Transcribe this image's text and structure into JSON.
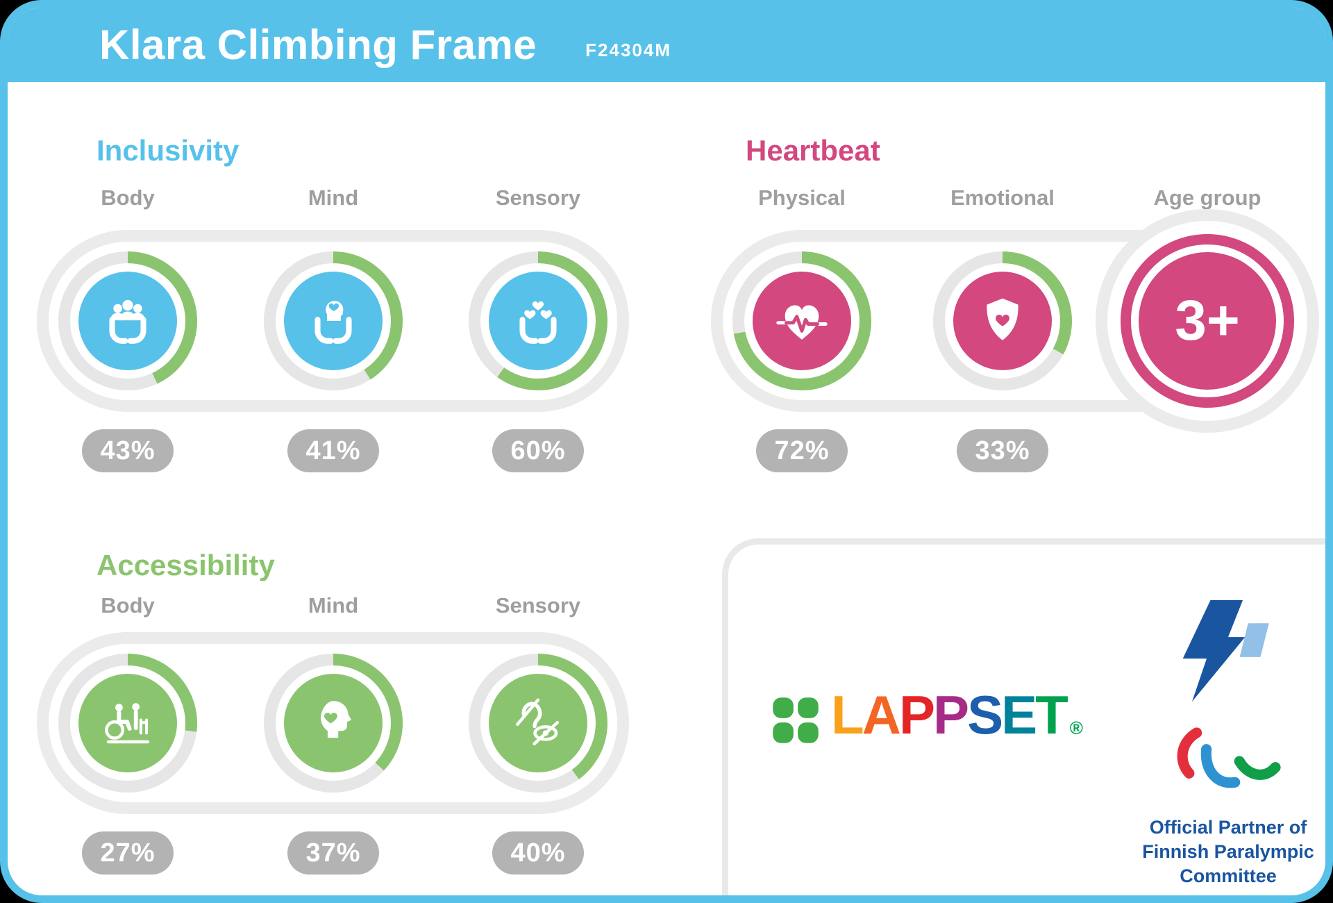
{
  "header": {
    "title": "Klara Climbing Frame",
    "code": "F24304M"
  },
  "colors": {
    "blue": "#57C1EA",
    "pink": "#D2487F",
    "green": "#8BC46F",
    "arc": "#8BC46F",
    "track": "#E6E6E6",
    "band": "#EBEBEB",
    "pill": "#B3B3B3",
    "label": "#9E9E9E",
    "paralympic_dark_blue": "#1A55A0",
    "paralympic_light_blue": "#92C0E6",
    "agito_red": "#E32E3C",
    "agito_blue": "#2D93D0",
    "agito_green": "#109E49",
    "lappset_clover_green": "#41AD49"
  },
  "sections": {
    "inclusivity": {
      "title": "Inclusivity",
      "accent": "#57C1EA",
      "items": [
        {
          "label": "Body",
          "percent": 43,
          "value": "43%",
          "icon": "hands-people-icon"
        },
        {
          "label": "Mind",
          "percent": 41,
          "value": "41%",
          "icon": "hands-head-icon"
        },
        {
          "label": "Sensory",
          "percent": 60,
          "value": "60%",
          "icon": "hands-hearts-icon"
        }
      ]
    },
    "heartbeat": {
      "title": "Heartbeat",
      "accent": "#D2487F",
      "items": [
        {
          "label": "Physical",
          "percent": 72,
          "value": "72%",
          "icon": "heart-pulse-icon"
        },
        {
          "label": "Emotional",
          "percent": 33,
          "value": "33%",
          "icon": "shield-heart-icon"
        },
        {
          "label": "Age group",
          "badge": "3+",
          "icon": "age-badge"
        }
      ]
    },
    "accessibility": {
      "title": "Accessibility",
      "accent": "#8BC46F",
      "items": [
        {
          "label": "Body",
          "percent": 27,
          "value": "27%",
          "icon": "wheelchair-walker-icon"
        },
        {
          "label": "Mind",
          "percent": 37,
          "value": "37%",
          "icon": "head-heart-icon"
        },
        {
          "label": "Sensory",
          "percent": 40,
          "value": "40%",
          "icon": "deafblind-icon"
        }
      ]
    }
  },
  "footer": {
    "lappset": {
      "brand": "LAPPSET",
      "registered": "®",
      "letter_colors": [
        "#F9A11B",
        "#F26522",
        "#E42528",
        "#A62B87",
        "#1D5FAC",
        "#00829B",
        "#00A24F"
      ],
      "registered_color": "#00A24F"
    },
    "partner": {
      "line1": "Official Partner of",
      "line2": "Finnish Paralympic",
      "line3": "Committee"
    }
  },
  "chart_data": [
    {
      "type": "pie",
      "title": "Inclusivity",
      "unit": "%",
      "categories": [
        "Body",
        "Mind",
        "Sensory"
      ],
      "values": [
        43,
        41,
        60
      ],
      "note": "each value shown as a circular gauge (green arc of a donut ring)"
    },
    {
      "type": "pie",
      "title": "Heartbeat",
      "unit": "%",
      "categories": [
        "Physical",
        "Emotional"
      ],
      "values": [
        72,
        33
      ],
      "extra": {
        "age_group": "3+"
      },
      "note": "each value shown as a circular gauge; age group shown as badge"
    },
    {
      "type": "pie",
      "title": "Accessibility",
      "unit": "%",
      "categories": [
        "Body",
        "Mind",
        "Sensory"
      ],
      "values": [
        27,
        37,
        40
      ],
      "note": "each value shown as a circular gauge (green arc of a donut ring)"
    }
  ]
}
